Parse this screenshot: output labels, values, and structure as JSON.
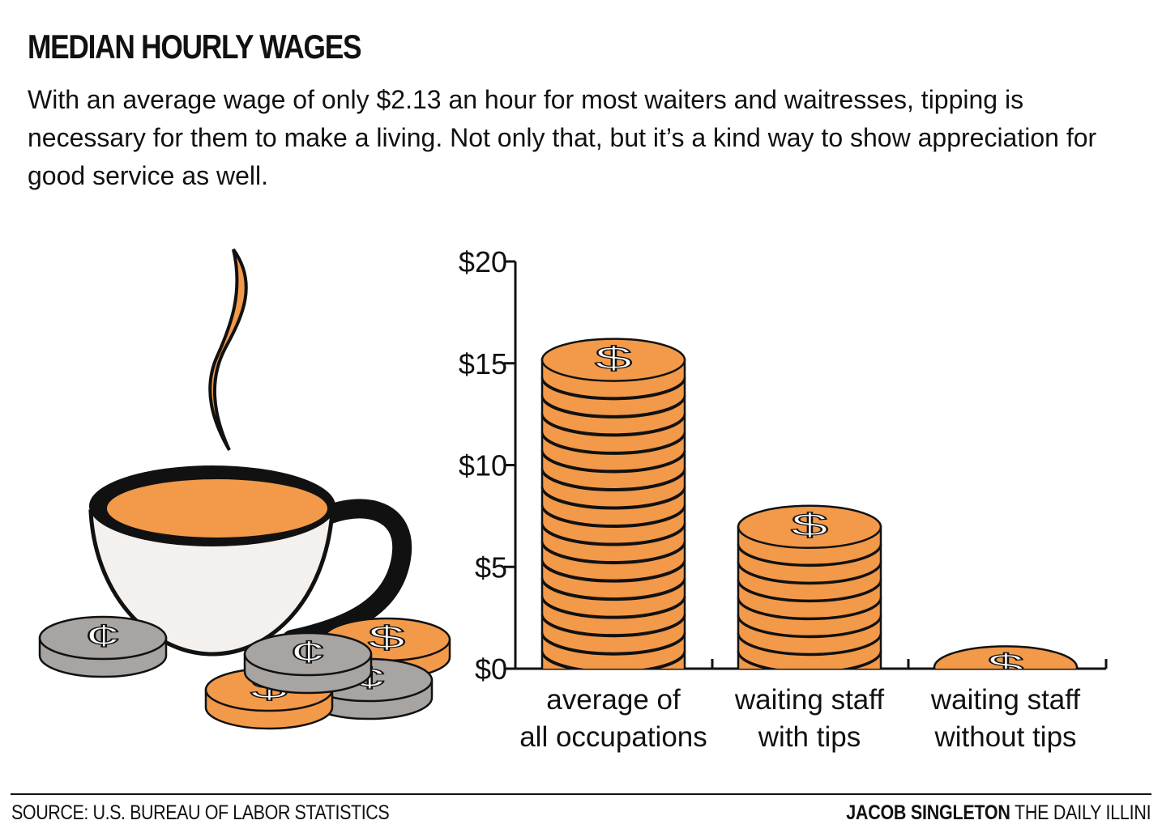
{
  "header": {
    "title": "MEDIAN HOURLY WAGES",
    "subtitle": "With an average wage of only $2.13 an hour for most waiters and waitresses, tipping is necessary for them to make a living. Not only that, but it’s a kind way to show appreciation for good service as well."
  },
  "footer": {
    "source": "SOURCE: U.S. BUREAU OF LABOR STATISTICS",
    "author": "JACOB SINGLETON",
    "publication": "THE DAILY ILLINI"
  },
  "colors": {
    "coin_orange": "#F2994A",
    "coin_gray": "#A7A4A2",
    "cup_body": "#F3F0EE",
    "ink": "#111111"
  },
  "chart_data": {
    "type": "bar",
    "title": "MEDIAN HOURLY WAGES",
    "categories": [
      "average of all occupations",
      "waiting staff with tips",
      "waiting staff without tips"
    ],
    "category_lines": [
      [
        "average of",
        "all occupations"
      ],
      [
        "waiting staff",
        "with tips"
      ],
      [
        "waiting staff",
        "without tips"
      ]
    ],
    "values": [
      16.2,
      8.0,
      1.1
    ],
    "ylim": [
      0,
      20
    ],
    "yticks": [
      0,
      5,
      10,
      15,
      20
    ],
    "ytick_labels": [
      "$0",
      "$5",
      "$10",
      "$15",
      "$20"
    ],
    "xlabel": "",
    "ylabel": "",
    "grid": false,
    "mark_style": "stacked coins",
    "coin_symbol": "$"
  }
}
